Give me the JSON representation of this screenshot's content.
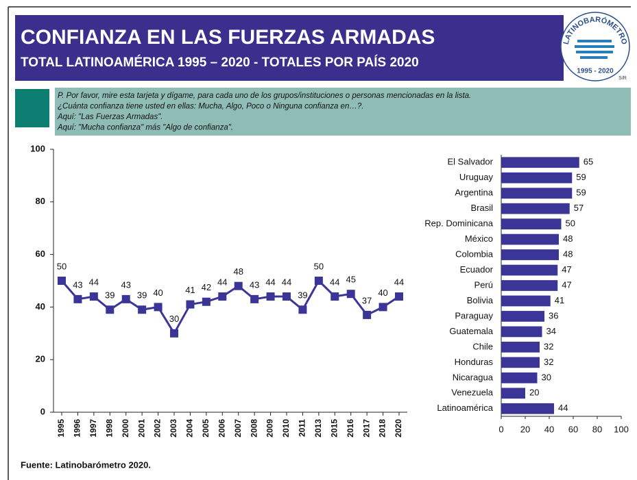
{
  "header": {
    "title": "CONFIANZA EN LAS FUERZAS ARMADAS",
    "subtitle": "TOTAL LATINOAMÉRICA 1995 – 2020 - TOTALES POR PAÍS 2020"
  },
  "logo": {
    "name": "LATINOBARÓMETRO",
    "years": "1995 - 2020",
    "mark": "S/R"
  },
  "question": [
    "P. Por favor, mire esta tarjeta y dígame, para cada uno de los grupos/instituciones o personas mencionadas en la lista.",
    "¿Cuánta confianza tiene usted en ellas: Mucha, Algo, Poco o Ninguna confianza en…?.",
    "Aquí: \"Las Fuerzas Armadas\".",
    "Aquí: \"Mucha confianza\" más \"Algo de confianza\"."
  ],
  "source": "Fuente: Latinobarómetro 2020.",
  "chart_data": [
    {
      "type": "line",
      "color": "#3a3596",
      "categories": [
        "1995",
        "1996",
        "1997",
        "1998",
        "2000",
        "2001",
        "2002",
        "2003",
        "2004",
        "2005",
        "2006",
        "2007",
        "2008",
        "2009",
        "2010",
        "2011",
        "2013",
        "2015",
        "2016",
        "2017",
        "2018",
        "2020"
      ],
      "values": [
        50,
        43,
        44,
        39,
        43,
        39,
        40,
        30,
        41,
        42,
        44,
        48,
        43,
        44,
        44,
        39,
        50,
        44,
        45,
        37,
        40,
        44
      ],
      "ylim": [
        0,
        100
      ],
      "yticks": [
        0,
        20,
        40,
        60,
        80,
        100
      ]
    },
    {
      "type": "hbar",
      "color": "#3a3596",
      "categories": [
        "El Salvador",
        "Uruguay",
        "Argentina",
        "Brasil",
        "Rep. Dominicana",
        "México",
        "Colombia",
        "Ecuador",
        "Perú",
        "Bolivia",
        "Paraguay",
        "Guatemala",
        "Chile",
        "Honduras",
        "Nicaragua",
        "Venezuela",
        "Latinoamérica"
      ],
      "values": [
        65,
        59,
        59,
        57,
        50,
        48,
        48,
        47,
        47,
        41,
        36,
        34,
        32,
        32,
        30,
        20,
        44
      ],
      "xlim": [
        0,
        100
      ],
      "xticks": [
        0,
        20,
        40,
        60,
        80,
        100
      ]
    }
  ]
}
